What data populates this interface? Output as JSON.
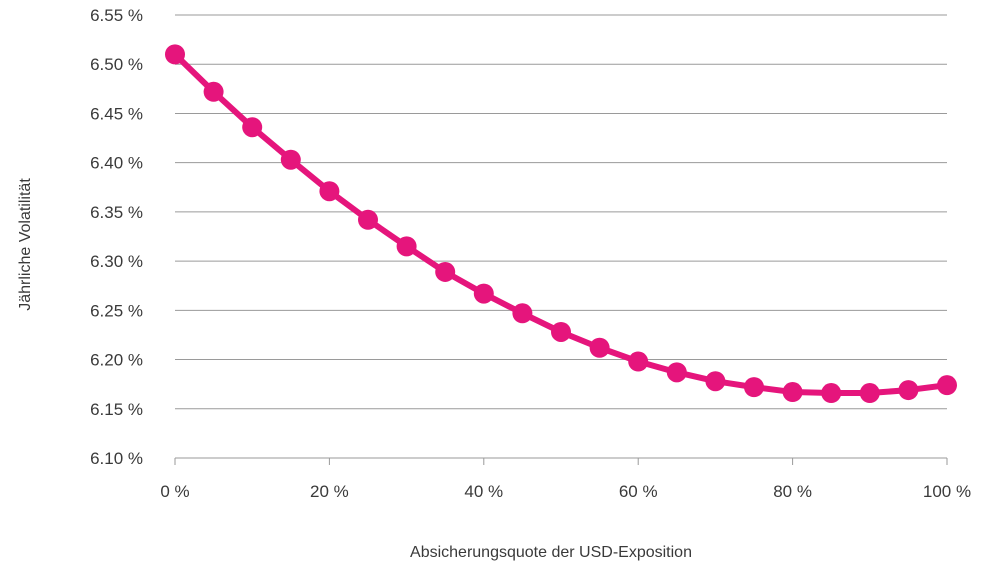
{
  "chart_data": {
    "type": "line",
    "xlabel": "Absicherungsquote der USD-Exposition",
    "ylabel": "Jährliche Volatilität",
    "ylim": [
      6.1,
      6.55
    ],
    "xlim": [
      0,
      100
    ],
    "x_ticks": [
      0,
      20,
      40,
      60,
      80,
      100
    ],
    "x_tick_labels": [
      "0 %",
      "20 %",
      "40 %",
      "60 %",
      "80 %",
      "100 %"
    ],
    "y_ticks": [
      6.1,
      6.15,
      6.2,
      6.25,
      6.3,
      6.35,
      6.4,
      6.45,
      6.5,
      6.55
    ],
    "y_tick_labels": [
      "6.10 %",
      "6.15 %",
      "6.20 %",
      "6.25 %",
      "6.30 %",
      "6.35 %",
      "6.40 %",
      "6.45 %",
      "6.50 %",
      "6.55 %"
    ],
    "grid": true,
    "legend": "none",
    "series": [
      {
        "color": "#e5157c",
        "x": [
          0,
          5,
          10,
          15,
          20,
          25,
          30,
          35,
          40,
          45,
          50,
          55,
          60,
          65,
          70,
          75,
          80,
          85,
          90,
          95,
          100
        ],
        "values": [
          6.51,
          6.472,
          6.436,
          6.403,
          6.371,
          6.342,
          6.315,
          6.289,
          6.267,
          6.247,
          6.228,
          6.212,
          6.198,
          6.187,
          6.178,
          6.172,
          6.167,
          6.166,
          6.166,
          6.169,
          6.174
        ]
      }
    ]
  }
}
